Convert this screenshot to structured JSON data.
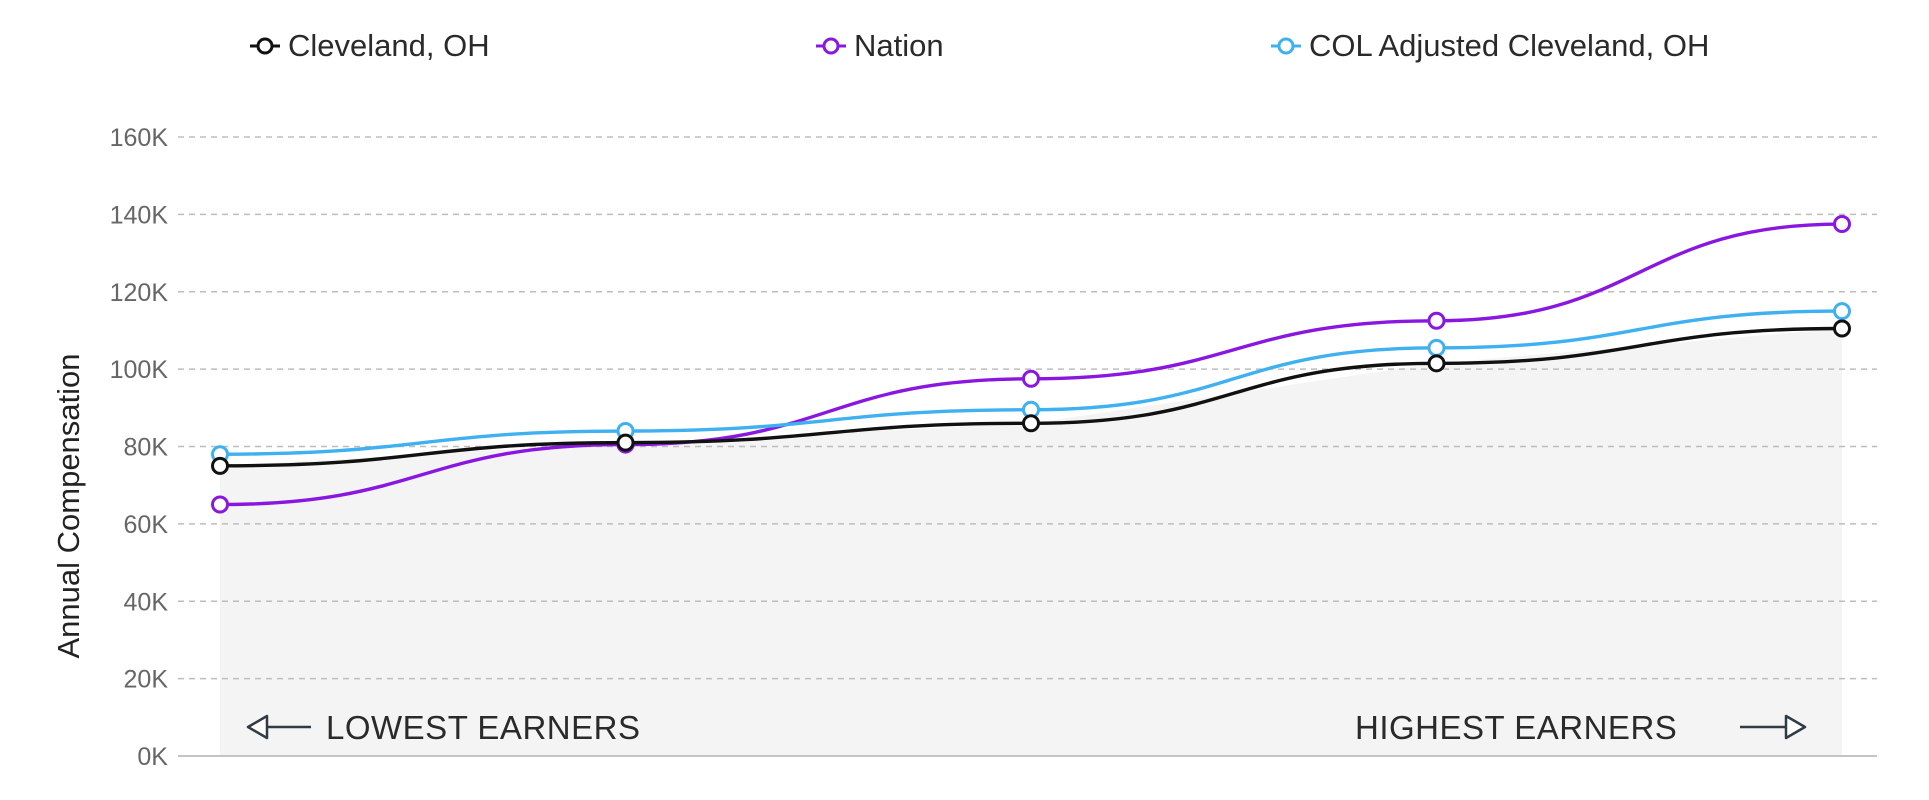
{
  "chart_data": {
    "type": "line",
    "x": [
      1,
      2,
      3,
      4,
      5
    ],
    "series": [
      {
        "name": "Cleveland, OH",
        "color": "#111111",
        "values": [
          75000,
          81000,
          86000,
          101500,
          110500
        ]
      },
      {
        "name": "Nation",
        "color": "#8a17e0",
        "values": [
          65000,
          80500,
          97500,
          112500,
          137500
        ]
      },
      {
        "name": "COL Adjusted Cleveland, OH",
        "color": "#3fb1f0",
        "values": [
          78000,
          84000,
          89500,
          105500,
          115000
        ]
      }
    ],
    "ylabel": "Annual Compensation",
    "ylim": [
      0,
      160000
    ],
    "yticks": [
      0,
      20000,
      40000,
      60000,
      80000,
      100000,
      120000,
      140000,
      160000
    ],
    "ytick_labels": [
      "0K",
      "20K",
      "40K",
      "60K",
      "80K",
      "100K",
      "120K",
      "140K",
      "160K"
    ],
    "grid": true,
    "legend_position": "top",
    "annotations": {
      "left": "LOWEST EARNERS",
      "right": "HIGHEST EARNERS"
    },
    "area_fill_color": "#f4f4f5"
  }
}
